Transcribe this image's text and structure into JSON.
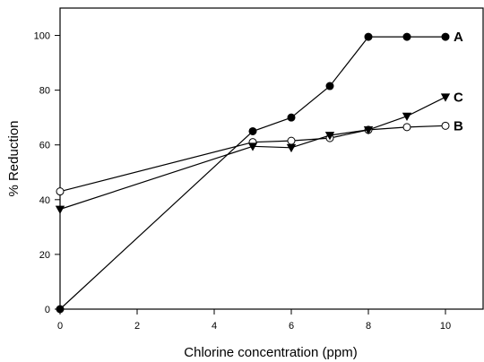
{
  "chart_data": {
    "type": "line",
    "title": "",
    "xlabel": "Chlorine concentration (ppm)",
    "ylabel": "% Reduction",
    "xlim": [
      0,
      11
    ],
    "ylim": [
      0,
      110
    ],
    "x_ticks": [
      0,
      2,
      4,
      6,
      8,
      10
    ],
    "y_ticks": [
      0,
      20,
      40,
      60,
      80,
      100
    ],
    "grid": false,
    "series": [
      {
        "name": "A",
        "marker": "filled-circle",
        "x": [
          0,
          5,
          6,
          7,
          8,
          9,
          10
        ],
        "y": [
          0,
          65,
          70,
          81.5,
          99.5,
          99.5,
          99.5
        ]
      },
      {
        "name": "B",
        "marker": "open-circle",
        "x": [
          0,
          5,
          6,
          7,
          8,
          9,
          10
        ],
        "y": [
          43,
          61,
          61.5,
          62.5,
          65.5,
          66.5,
          67
        ]
      },
      {
        "name": "C",
        "marker": "filled-triangle-down",
        "x": [
          0,
          5,
          6,
          7,
          8,
          9,
          10
        ],
        "y": [
          36.5,
          59.5,
          59,
          63.5,
          65.5,
          70.5,
          77.5
        ]
      }
    ]
  }
}
